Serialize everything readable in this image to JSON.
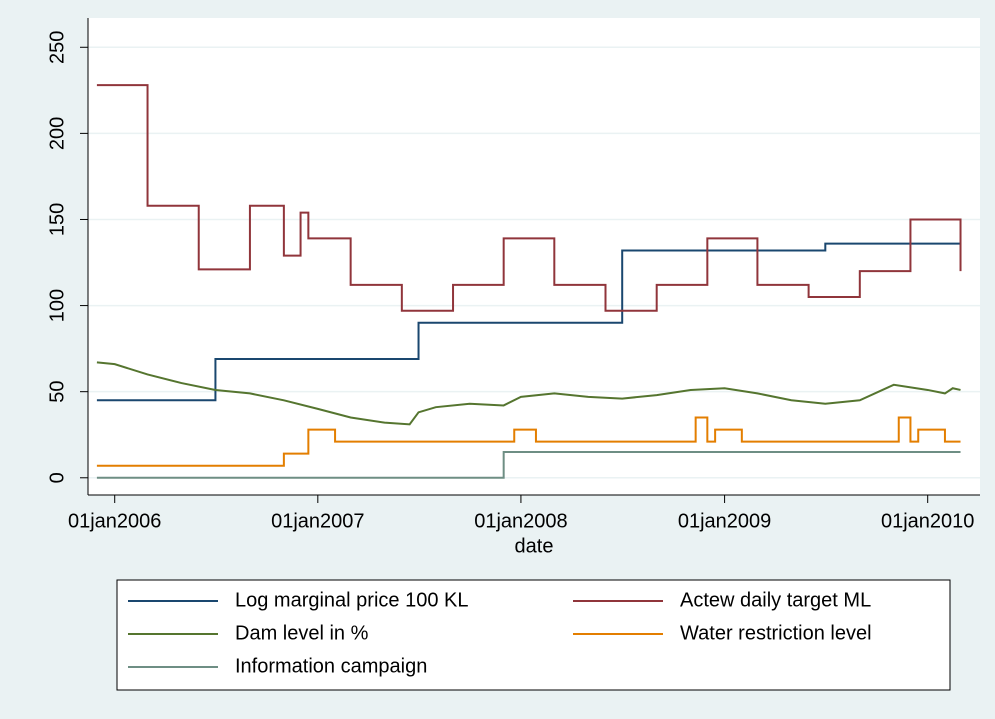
{
  "chart_data": {
    "type": "line",
    "xlabel": "date",
    "xlim": [
      "2005-11-14",
      "2010-04-05"
    ],
    "xticks": [
      {
        "value": "2006-01-01",
        "label": "01jan2006"
      },
      {
        "value": "2007-01-01",
        "label": "01jan2007"
      },
      {
        "value": "2008-01-01",
        "label": "01jan2008"
      },
      {
        "value": "2009-01-01",
        "label": "01jan2009"
      },
      {
        "value": "2010-01-01",
        "label": "01jan2010"
      }
    ],
    "ylim": [
      -10,
      267
    ],
    "yticks": [
      0,
      50,
      100,
      150,
      200,
      250
    ],
    "grid": true,
    "legend": "bottom",
    "series": [
      {
        "name": "Log marginal price 100 KL",
        "color": "#1a476f",
        "step": "post",
        "x": [
          "2005-11-30",
          "2006-07-01",
          "2007-07-01",
          "2008-07-01",
          "2009-07-01",
          "2010-03-01"
        ],
        "values": [
          45,
          69,
          90,
          132,
          136,
          136
        ]
      },
      {
        "name": "Actew daily target ML",
        "color": "#90353b",
        "step": "post",
        "x": [
          "2005-11-30",
          "2006-03-01",
          "2006-06-01",
          "2006-09-01",
          "2006-11-01",
          "2006-12-01",
          "2006-12-15",
          "2007-03-01",
          "2007-06-01",
          "2007-09-01",
          "2007-12-01",
          "2008-03-01",
          "2008-06-01",
          "2008-09-01",
          "2008-12-01",
          "2009-03-01",
          "2009-06-01",
          "2009-09-01",
          "2009-12-01",
          "2010-03-01"
        ],
        "values": [
          228,
          158,
          121,
          158,
          129,
          154,
          139,
          112,
          97,
          112,
          139,
          112,
          97,
          112,
          139,
          112,
          105,
          120,
          150,
          120
        ]
      },
      {
        "name": "Dam level in %",
        "color": "#55752f",
        "x": [
          "2005-11-30",
          "2006-01-01",
          "2006-03-01",
          "2006-05-01",
          "2006-07-01",
          "2006-09-01",
          "2006-11-01",
          "2007-01-01",
          "2007-03-01",
          "2007-05-01",
          "2007-06-15",
          "2007-07-01",
          "2007-08-01",
          "2007-10-01",
          "2007-12-01",
          "2008-01-01",
          "2008-03-01",
          "2008-05-01",
          "2008-07-01",
          "2008-09-01",
          "2008-11-01",
          "2009-01-01",
          "2009-03-01",
          "2009-05-01",
          "2009-07-01",
          "2009-09-01",
          "2009-11-01",
          "2010-01-01",
          "2010-02-01",
          "2010-02-15",
          "2010-03-01"
        ],
        "values": [
          67,
          66,
          60,
          55,
          51,
          49,
          45,
          40,
          35,
          32,
          31,
          38,
          41,
          43,
          42,
          47,
          49,
          47,
          46,
          48,
          51,
          52,
          49,
          45,
          43,
          45,
          54,
          51,
          49,
          52,
          51
        ]
      },
      {
        "name": "Water restriction level",
        "color": "#e37e00",
        "step": "post",
        "x": [
          "2005-11-30",
          "2006-11-01",
          "2006-12-15",
          "2007-02-01",
          "2007-12-20",
          "2008-01-28",
          "2008-11-10",
          "2008-12-01",
          "2008-12-15",
          "2009-02-01",
          "2009-11-10",
          "2009-12-01",
          "2009-12-15",
          "2010-02-01",
          "2010-03-01"
        ],
        "values": [
          7,
          14,
          28,
          21,
          28,
          21,
          35,
          21,
          28,
          21,
          35,
          21,
          28,
          21,
          21
        ]
      },
      {
        "name": "Information campaign",
        "color": "#6e8e84",
        "step": "post",
        "x": [
          "2005-11-30",
          "2007-12-01",
          "2010-03-01"
        ],
        "values": [
          0,
          15,
          15
        ]
      }
    ]
  }
}
